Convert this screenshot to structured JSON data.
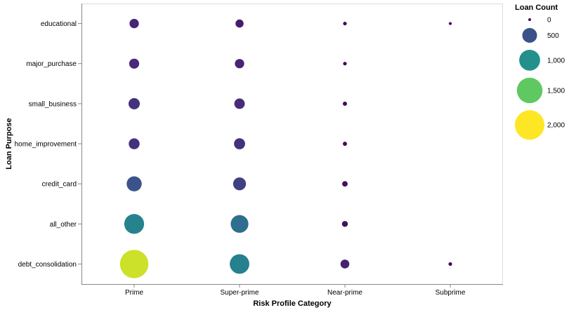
{
  "chart_data": {
    "type": "bubble",
    "title": "",
    "xlabel": "Risk Profile Category",
    "ylabel": "Loan Purpose",
    "x_categories": [
      "Prime",
      "Super-prime",
      "Near-prime",
      "Subprime"
    ],
    "y_categories": [
      "educational",
      "major_purchase",
      "small_business",
      "home_improvement",
      "credit_card",
      "all_other",
      "debt_consolidation"
    ],
    "size_scale": {
      "domain": [
        0,
        2300
      ],
      "legend_values": [
        0,
        500,
        1000,
        1500,
        2000
      ],
      "legend_labels": [
        "0",
        "500",
        "1,000",
        "1,500",
        "2,000"
      ]
    },
    "color_scale": {
      "scheme": "viridis",
      "domain": [
        0,
        2000
      ]
    },
    "grid": false,
    "legend": {
      "title": "Loan Count",
      "placement": "right"
    },
    "points": [
      {
        "x": "Prime",
        "y": "educational",
        "value": 200
      },
      {
        "x": "Super-prime",
        "y": "educational",
        "value": 150
      },
      {
        "x": "Near-prime",
        "y": "educational",
        "value": 30
      },
      {
        "x": "Subprime",
        "y": "educational",
        "value": 20
      },
      {
        "x": "Prime",
        "y": "major_purchase",
        "value": 230
      },
      {
        "x": "Super-prime",
        "y": "major_purchase",
        "value": 200
      },
      {
        "x": "Near-prime",
        "y": "major_purchase",
        "value": 30
      },
      {
        "x": "Prime",
        "y": "small_business",
        "value": 290
      },
      {
        "x": "Super-prime",
        "y": "small_business",
        "value": 250
      },
      {
        "x": "Near-prime",
        "y": "small_business",
        "value": 40
      },
      {
        "x": "Prime",
        "y": "home_improvement",
        "value": 270
      },
      {
        "x": "Super-prime",
        "y": "home_improvement",
        "value": 280
      },
      {
        "x": "Near-prime",
        "y": "home_improvement",
        "value": 40
      },
      {
        "x": "Prime",
        "y": "credit_card",
        "value": 520
      },
      {
        "x": "Super-prime",
        "y": "credit_card",
        "value": 380
      },
      {
        "x": "Near-prime",
        "y": "credit_card",
        "value": 70
      },
      {
        "x": "Prime",
        "y": "all_other",
        "value": 900
      },
      {
        "x": "Super-prime",
        "y": "all_other",
        "value": 720
      },
      {
        "x": "Near-prime",
        "y": "all_other",
        "value": 80
      },
      {
        "x": "Prime",
        "y": "debt_consolidation",
        "value": 1850
      },
      {
        "x": "Super-prime",
        "y": "debt_consolidation",
        "value": 880
      },
      {
        "x": "Near-prime",
        "y": "debt_consolidation",
        "value": 180
      },
      {
        "x": "Subprime",
        "y": "debt_consolidation",
        "value": 30
      }
    ]
  }
}
